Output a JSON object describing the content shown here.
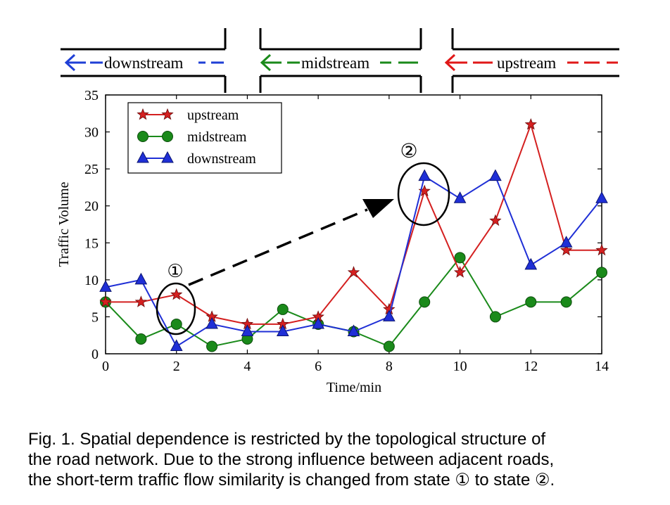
{
  "road": {
    "labels": [
      {
        "id": "downstream",
        "text": "downstream",
        "color": "#1f3fd6"
      },
      {
        "id": "midstream",
        "text": "midstream",
        "color": "#1a8a1a"
      },
      {
        "id": "upstream",
        "text": "upstream",
        "color": "#e01818"
      }
    ]
  },
  "caption": {
    "lines": [
      "Fig. 1. Spatial dependence is restricted by the topological structure of",
      "the road network. Due to the strong influence between adjacent roads,",
      "the short-term traffic flow similarity is changed from state ① to state ②."
    ]
  },
  "chart_data": {
    "type": "line",
    "title": "",
    "xlabel": "Time/min",
    "ylabel": "Traffic Volume",
    "xlim": [
      0,
      14
    ],
    "ylim": [
      0,
      35
    ],
    "xticks": [
      0,
      2,
      4,
      6,
      8,
      10,
      12,
      14
    ],
    "yticks": [
      0,
      5,
      10,
      15,
      20,
      25,
      30,
      35
    ],
    "grid": false,
    "legend_position": "top-left",
    "x": [
      0,
      1,
      2,
      3,
      4,
      5,
      6,
      7,
      8,
      9,
      10,
      11,
      12,
      13,
      14
    ],
    "series": [
      {
        "name": "upstream",
        "color": "#d42020",
        "marker": "star",
        "values": [
          7,
          7,
          8,
          5,
          4,
          4,
          5,
          11,
          6,
          22,
          11,
          18,
          31,
          14,
          14
        ]
      },
      {
        "name": "midstream",
        "color": "#1a8a1a",
        "marker": "circle",
        "values": [
          7,
          2,
          4,
          1,
          2,
          6,
          4,
          3,
          1,
          7,
          13,
          5,
          7,
          7,
          11
        ]
      },
      {
        "name": "downstream",
        "color": "#1f2fd6",
        "marker": "triangle",
        "values": [
          9,
          10,
          1,
          4,
          3,
          3,
          4,
          3,
          5,
          24,
          21,
          24,
          12,
          15,
          21
        ]
      }
    ],
    "annotations": [
      {
        "label": "①",
        "x": 2,
        "y": 6
      },
      {
        "label": "②",
        "x": 9,
        "y": 22
      }
    ]
  }
}
